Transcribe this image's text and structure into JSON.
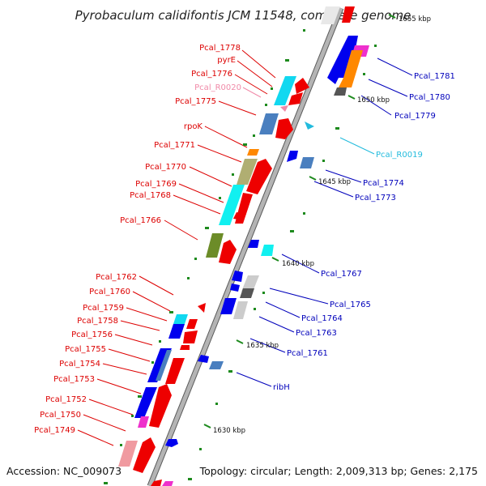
{
  "title": "Pyrobaculum calidifontis JCM 11548, complete genome",
  "footer": {
    "accession": "Accession: NC_009073",
    "topology": "Topology: circular; Length: 2,009,313 bp; Genes: 2,175"
  },
  "colors": {
    "backbone": "#9a9a9a",
    "left_label": "#dd0000",
    "right_label": "#0000bb",
    "rna_left": "#f08aa8",
    "rna_right": "#22bbdd",
    "tick": "#1d8a1d"
  },
  "kbp_markers": [
    {
      "kbp": 1655,
      "text": "1655 kbp"
    },
    {
      "kbp": 1650,
      "text": "1650 kbp"
    },
    {
      "kbp": 1645,
      "text": "1645 kbp"
    },
    {
      "kbp": 1640,
      "text": "1640 kbp"
    },
    {
      "kbp": 1635,
      "text": "1635 kbp"
    },
    {
      "kbp": 1630,
      "text": "1630 kbp"
    }
  ],
  "left_labels": [
    {
      "text": "Pcal_1778",
      "color": "#dd0000"
    },
    {
      "text": "pyrE",
      "color": "#dd0000"
    },
    {
      "text": "Pcal_1776",
      "color": "#dd0000"
    },
    {
      "text": "Pcal_R0020",
      "color": "#f08aa8"
    },
    {
      "text": "Pcal_1775",
      "color": "#dd0000"
    },
    {
      "text": "rpoK",
      "color": "#dd0000"
    },
    {
      "text": "Pcal_1771",
      "color": "#dd0000"
    },
    {
      "text": "Pcal_1770",
      "color": "#dd0000"
    },
    {
      "text": "Pcal_1769",
      "color": "#dd0000"
    },
    {
      "text": "Pcal_1768",
      "color": "#dd0000"
    },
    {
      "text": "Pcal_1766",
      "color": "#dd0000"
    },
    {
      "text": "Pcal_1762",
      "color": "#dd0000"
    },
    {
      "text": "Pcal_1760",
      "color": "#dd0000"
    },
    {
      "text": "Pcal_1759",
      "color": "#dd0000"
    },
    {
      "text": "Pcal_1758",
      "color": "#dd0000"
    },
    {
      "text": "Pcal_1756",
      "color": "#dd0000"
    },
    {
      "text": "Pcal_1755",
      "color": "#dd0000"
    },
    {
      "text": "Pcal_1754",
      "color": "#dd0000"
    },
    {
      "text": "Pcal_1753",
      "color": "#dd0000"
    },
    {
      "text": "Pcal_1752",
      "color": "#dd0000"
    },
    {
      "text": "Pcal_1750",
      "color": "#dd0000"
    },
    {
      "text": "Pcal_1749",
      "color": "#dd0000"
    }
  ],
  "right_labels": [
    {
      "text": "Pcal_1781",
      "color": "#0000bb"
    },
    {
      "text": "Pcal_1780",
      "color": "#0000bb"
    },
    {
      "text": "Pcal_1779",
      "color": "#0000bb"
    },
    {
      "text": "Pcal_R0019",
      "color": "#22bbdd"
    },
    {
      "text": "Pcal_1774",
      "color": "#0000bb"
    },
    {
      "text": "Pcal_1773",
      "color": "#0000bb"
    },
    {
      "text": "Pcal_1767",
      "color": "#0000bb"
    },
    {
      "text": "Pcal_1765",
      "color": "#0000bb"
    },
    {
      "text": "Pcal_1764",
      "color": "#0000bb"
    },
    {
      "text": "Pcal_1763",
      "color": "#0000bb"
    },
    {
      "text": "Pcal_1761",
      "color": "#0000bb"
    },
    {
      "text": "ribH",
      "color": "#0000bb"
    }
  ]
}
